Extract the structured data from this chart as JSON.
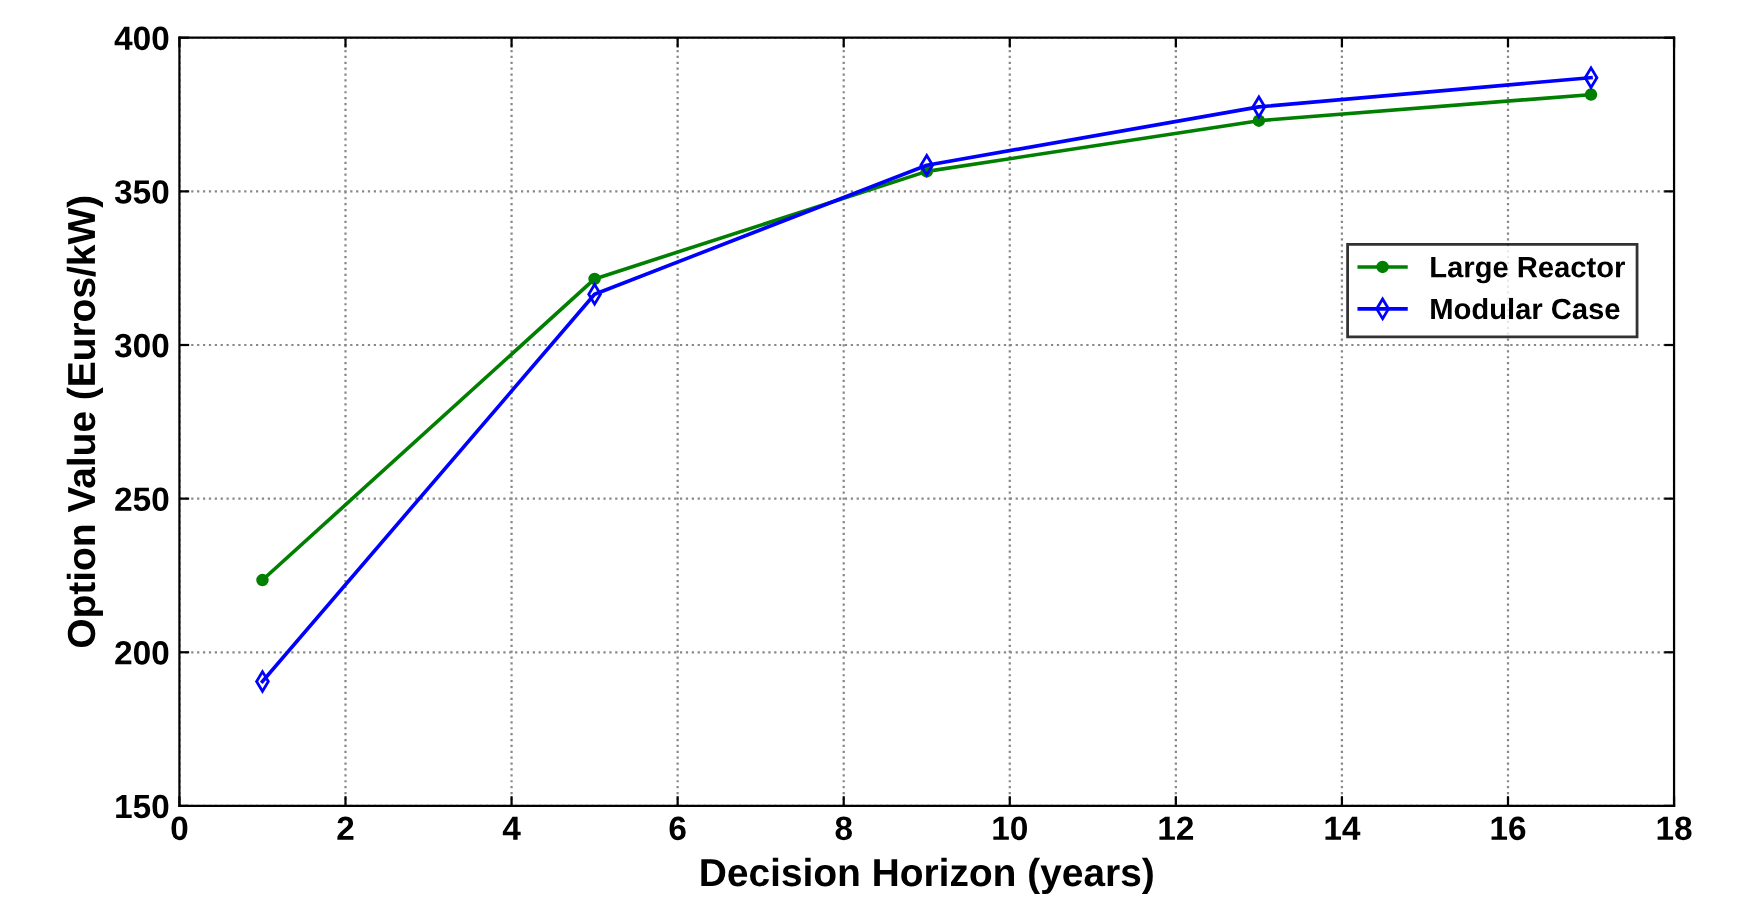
{
  "chart_data": {
    "type": "line",
    "xlabel": "Decision Horizon (years)",
    "ylabel": "Option Value (Euros/kW)",
    "x": [
      1,
      5,
      9,
      13,
      17
    ],
    "series": [
      {
        "name": "Large Reactor",
        "color": "#007f00",
        "marker": "circle",
        "values": [
          223.5,
          321.5,
          356.5,
          373,
          381.5
        ]
      },
      {
        "name": "Modular Case",
        "color": "#0000ff",
        "marker": "diamond",
        "values": [
          190.5,
          316.5,
          358.5,
          377.5,
          387
        ]
      }
    ],
    "xlim": [
      0,
      18
    ],
    "xticks": [
      0,
      2,
      4,
      6,
      8,
      10,
      12,
      14,
      16,
      18
    ],
    "ylim": [
      150,
      400
    ],
    "yticks": [
      150,
      200,
      250,
      300,
      350,
      400
    ],
    "grid": true,
    "legend": "right",
    "line_style": "solid"
  }
}
